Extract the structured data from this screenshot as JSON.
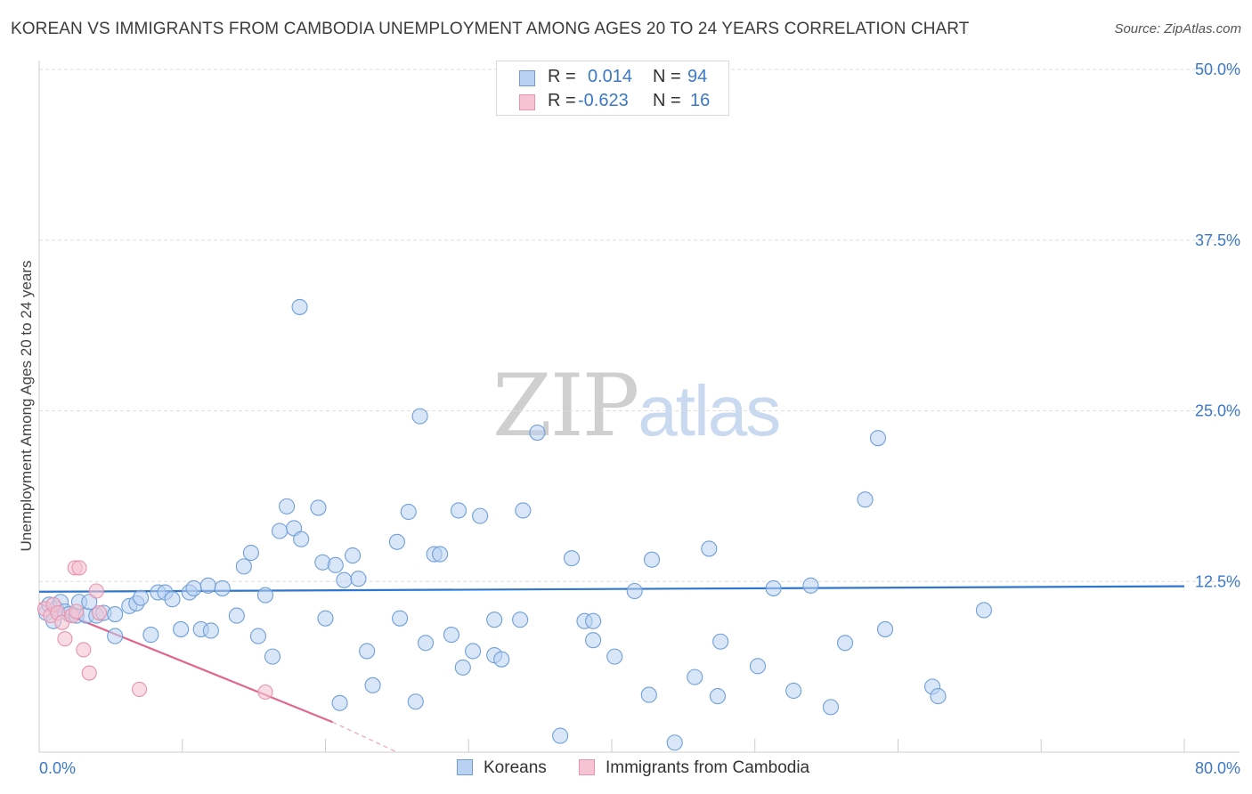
{
  "title": "KOREAN VS IMMIGRANTS FROM CAMBODIA UNEMPLOYMENT AMONG AGES 20 TO 24 YEARS CORRELATION CHART",
  "source": "Source: ZipAtlas.com",
  "watermark": {
    "zip": "ZIP",
    "atlas": "atlas"
  },
  "colors": {
    "blue_fill": "#b9d2f3",
    "blue_stroke": "#6f9fd8",
    "blue_line": "#2f76cf",
    "pink_fill": "#f5c3d2",
    "pink_stroke": "#e693ae",
    "pink_line": "#e0668e",
    "tick_text": "#3b78c9",
    "grid": "#dddddd"
  },
  "stats": {
    "rows": [
      {
        "r_label": "R =",
        "r_value": "0.014",
        "n_label": "N =",
        "n_value": "94"
      },
      {
        "r_label": "R =",
        "r_value": "-0.623",
        "n_label": "N =",
        "n_value": "16"
      }
    ]
  },
  "legend": {
    "series1": "Koreans",
    "series2": "Immigrants from Cambodia"
  },
  "chart_data": {
    "type": "scatter",
    "title": "KOREAN VS IMMIGRANTS FROM CAMBODIA UNEMPLOYMENT AMONG AGES 20 TO 24 YEARS CORRELATION CHART",
    "ylabel": "Unemployment Among Ages 20 to 24 years",
    "xlabel": "",
    "xlim": [
      0,
      80
    ],
    "ylim": [
      0,
      50
    ],
    "x_tick_labels": [
      "0.0%",
      "80.0%"
    ],
    "y_tick_labels": [
      "12.5%",
      "25.0%",
      "37.5%",
      "50.0%"
    ],
    "y_ticks": [
      12.5,
      25.0,
      37.5,
      50.0
    ],
    "grid": true,
    "legend_position": "bottom-center",
    "series": [
      {
        "name": "Koreans",
        "points": [
          [
            0.5,
            10.2
          ],
          [
            0.7,
            10.8
          ],
          [
            1.0,
            9.6
          ],
          [
            1.2,
            10.5
          ],
          [
            1.5,
            11.0
          ],
          [
            1.8,
            10.3
          ],
          [
            2.1,
            10.1
          ],
          [
            2.6,
            10.0
          ],
          [
            2.8,
            11.0
          ],
          [
            3.3,
            10.0
          ],
          [
            3.5,
            11.0
          ],
          [
            4.0,
            10.0
          ],
          [
            4.5,
            10.2
          ],
          [
            5.3,
            10.1
          ],
          [
            5.3,
            8.5
          ],
          [
            6.3,
            10.7
          ],
          [
            6.8,
            10.9
          ],
          [
            7.1,
            11.3
          ],
          [
            7.8,
            8.6
          ],
          [
            8.3,
            11.7
          ],
          [
            8.8,
            11.7
          ],
          [
            9.3,
            11.2
          ],
          [
            9.9,
            9.0
          ],
          [
            10.5,
            11.7
          ],
          [
            10.8,
            12.0
          ],
          [
            11.3,
            9.0
          ],
          [
            12.0,
            8.9
          ],
          [
            11.8,
            12.2
          ],
          [
            12.8,
            12.0
          ],
          [
            13.8,
            10.0
          ],
          [
            14.3,
            13.6
          ],
          [
            14.8,
            14.6
          ],
          [
            15.3,
            8.5
          ],
          [
            15.8,
            11.5
          ],
          [
            16.3,
            7.0
          ],
          [
            16.8,
            16.2
          ],
          [
            17.3,
            18.0
          ],
          [
            17.8,
            16.4
          ],
          [
            18.3,
            15.6
          ],
          [
            18.2,
            32.6
          ],
          [
            19.5,
            17.9
          ],
          [
            19.8,
            13.9
          ],
          [
            20.0,
            9.8
          ],
          [
            20.7,
            13.7
          ],
          [
            21.0,
            3.6
          ],
          [
            21.3,
            12.6
          ],
          [
            21.9,
            14.4
          ],
          [
            22.3,
            12.7
          ],
          [
            22.9,
            7.4
          ],
          [
            23.3,
            4.9
          ],
          [
            25.0,
            15.4
          ],
          [
            25.2,
            9.8
          ],
          [
            25.8,
            17.6
          ],
          [
            26.3,
            3.7
          ],
          [
            26.6,
            24.6
          ],
          [
            27.0,
            8.0
          ],
          [
            27.6,
            14.5
          ],
          [
            28.0,
            14.5
          ],
          [
            28.8,
            8.6
          ],
          [
            29.3,
            17.7
          ],
          [
            29.6,
            6.2
          ],
          [
            30.3,
            7.4
          ],
          [
            30.8,
            17.3
          ],
          [
            31.8,
            7.1
          ],
          [
            31.8,
            9.7
          ],
          [
            32.3,
            6.8
          ],
          [
            33.6,
            9.7
          ],
          [
            33.8,
            17.7
          ],
          [
            34.8,
            23.4
          ],
          [
            36.4,
            1.2
          ],
          [
            37.2,
            14.2
          ],
          [
            38.1,
            9.6
          ],
          [
            38.7,
            9.6
          ],
          [
            38.7,
            8.2
          ],
          [
            40.2,
            7.0
          ],
          [
            41.6,
            11.8
          ],
          [
            42.6,
            4.2
          ],
          [
            42.8,
            14.1
          ],
          [
            44.4,
            0.7
          ],
          [
            45.8,
            5.5
          ],
          [
            46.8,
            14.9
          ],
          [
            47.4,
            4.1
          ],
          [
            47.6,
            8.1
          ],
          [
            50.2,
            6.3
          ],
          [
            51.3,
            12.0
          ],
          [
            52.7,
            4.5
          ],
          [
            53.9,
            12.2
          ],
          [
            55.3,
            3.3
          ],
          [
            56.3,
            8.0
          ],
          [
            57.7,
            18.5
          ],
          [
            58.6,
            23.0
          ],
          [
            59.1,
            9.0
          ],
          [
            62.4,
            4.8
          ],
          [
            62.8,
            4.1
          ],
          [
            66.0,
            10.4
          ]
        ],
        "trend": {
          "x": [
            0,
            80
          ],
          "y": [
            11.75,
            12.15
          ]
        }
      },
      {
        "name": "Immigrants from Cambodia",
        "points": [
          [
            0.4,
            10.5
          ],
          [
            0.8,
            10.0
          ],
          [
            1.0,
            10.8
          ],
          [
            1.3,
            10.2
          ],
          [
            1.6,
            9.5
          ],
          [
            1.8,
            8.3
          ],
          [
            2.3,
            10.0
          ],
          [
            2.5,
            13.5
          ],
          [
            2.8,
            13.5
          ],
          [
            3.1,
            7.5
          ],
          [
            3.5,
            5.8
          ],
          [
            4.0,
            11.8
          ],
          [
            7.0,
            4.6
          ],
          [
            15.8,
            4.4
          ],
          [
            4.2,
            10.2
          ],
          [
            2.6,
            10.3
          ]
        ],
        "trend": {
          "x": [
            0,
            20.5
          ],
          "y": [
            10.9,
            2.2
          ]
        },
        "trend_extension": {
          "x": [
            20.5,
            25
          ],
          "y": [
            2.2,
            0.0
          ]
        }
      }
    ]
  }
}
